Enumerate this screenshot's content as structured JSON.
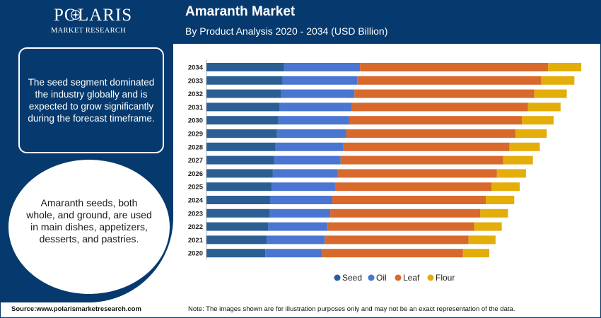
{
  "header": {
    "logo_name": "POLARIS",
    "logo_sub": "MARKET RESEARCH",
    "title": "Amaranth Market",
    "subtitle": "By Product Analysis 2020 - 2034 (USD Billion)"
  },
  "left_panel": {
    "summary": "The seed segment dominated the industry globally and is expected to grow significantly during the forecast timeframe.",
    "info": "Amaranth seeds, both whole, and ground, are used in main dishes, appetizers, desserts, and pastries."
  },
  "footer": {
    "source": "Source:www.polarismarketresearch.com",
    "note": "Note: The images shown are for illustration purposes only and may not be an exact representation of the data."
  },
  "colors": {
    "Seed": "#2b5f94",
    "Oil": "#4a76d2",
    "Leaf": "#d8692c",
    "Flour": "#e3ae0a",
    "brand": "#063a6e"
  },
  "chart_data": {
    "type": "bar",
    "orientation": "horizontal",
    "stacked": true,
    "categories": [
      "2034",
      "2033",
      "2032",
      "2031",
      "2030",
      "2029",
      "2028",
      "2027",
      "2026",
      "2025",
      "2024",
      "2023",
      "2022",
      "2021",
      "2020"
    ],
    "series": [
      {
        "name": "Seed",
        "values": [
          112,
          110,
          108,
          106,
          104,
          102,
          100,
          98,
          96,
          94,
          92,
          91,
          89,
          87,
          85
        ]
      },
      {
        "name": "Oil",
        "values": [
          110,
          108,
          106,
          104,
          102,
          100,
          98,
          96,
          94,
          92,
          90,
          88,
          86,
          84,
          82
        ]
      },
      {
        "name": "Leaf",
        "values": [
          272,
          266,
          260,
          255,
          250,
          245,
          240,
          235,
          230,
          226,
          222,
          217,
          212,
          208,
          204
        ]
      },
      {
        "name": "Flour",
        "values": [
          48,
          48,
          47,
          47,
          46,
          45,
          44,
          43,
          42,
          41,
          41,
          40,
          40,
          39,
          38
        ]
      }
    ],
    "xlim": [
      0,
      548
    ],
    "grid": false,
    "legend": "bottom-center"
  }
}
